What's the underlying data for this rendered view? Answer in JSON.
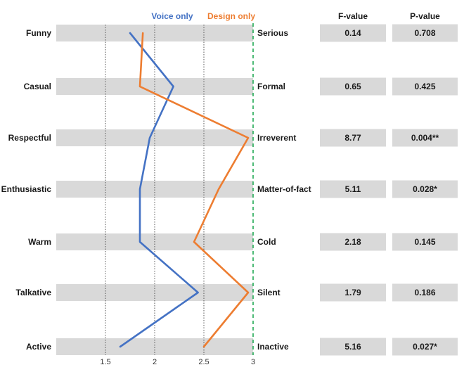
{
  "chart_data": {
    "type": "line",
    "orientation": "horizontal-profile",
    "left_labels": [
      "Funny",
      "Casual",
      "Respectful",
      "Enthusiastic",
      "Warm",
      "Talkative",
      "Active"
    ],
    "right_labels": [
      "Serious",
      "Formal",
      "Irreverent",
      "Matter-of-fact",
      "Cold",
      "Silent",
      "Inactive"
    ],
    "xlim": [
      1.0,
      3.0
    ],
    "x_ticks": [
      "1.5",
      "2",
      "2.5",
      "3"
    ],
    "grid": "vertical dotted at 1.5, 2, 2.5; dashed green reference at 3",
    "series": [
      {
        "name": "Voice only",
        "color": "#4472c4",
        "values": [
          1.75,
          2.19,
          1.95,
          1.85,
          1.85,
          2.44,
          1.65
        ]
      },
      {
        "name": "Design only",
        "color": "#ed7d31",
        "values": [
          1.88,
          1.85,
          2.95,
          2.65,
          2.4,
          2.95,
          2.5
        ]
      }
    ],
    "reference_line": {
      "value": 3,
      "color": "#22aa55"
    }
  },
  "table": {
    "headers": [
      "F-value",
      "P-value"
    ],
    "rows": [
      {
        "f": "0.14",
        "p": "0.708",
        "significant": false
      },
      {
        "f": "0.65",
        "p": "0.425",
        "significant": false
      },
      {
        "f": "8.77",
        "p": "0.004**",
        "significant": true
      },
      {
        "f": "5.11",
        "p": "0.028*",
        "significant": true
      },
      {
        "f": "2.18",
        "p": "0.145",
        "significant": false
      },
      {
        "f": "1.79",
        "p": "0.186",
        "significant": false
      },
      {
        "f": "5.16",
        "p": "0.027*",
        "significant": true
      }
    ],
    "significant_color": "#ff2a2a"
  }
}
